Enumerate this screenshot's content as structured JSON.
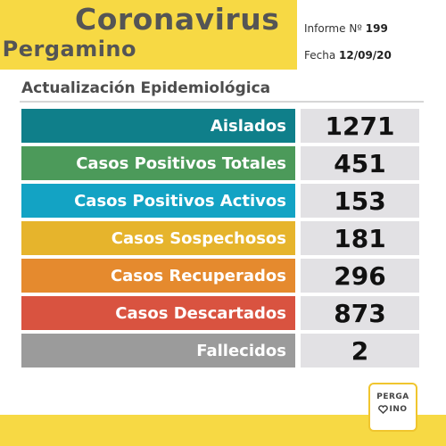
{
  "header": {
    "title": "Coronavirus",
    "subtitle": "Pergamino",
    "report_label": "Informe Nº",
    "report_number": "199",
    "date_label": "Fecha",
    "date_value": "12/09/20"
  },
  "section_title": "Actualización Epidemiológica",
  "stats": [
    {
      "label": "Aislados",
      "value": "1271",
      "color": "#0f7f8a"
    },
    {
      "label": "Casos Positivos Totales",
      "value": "451",
      "color": "#4c9a5a"
    },
    {
      "label": "Casos Positivos Activos",
      "value": "153",
      "color": "#13a3c4"
    },
    {
      "label": "Casos Sospechosos",
      "value": "181",
      "color": "#e6b42c"
    },
    {
      "label": "Casos Recuperados",
      "value": "296",
      "color": "#e58a2e"
    },
    {
      "label": "Casos Descartados",
      "value": "873",
      "color": "#d95340"
    },
    {
      "label": "Fallecidos",
      "value": "2",
      "color": "#9b9b9b"
    }
  ],
  "logo": {
    "line1": "PERGA",
    "line2": "INO",
    "heart_color": "#444444"
  },
  "colors": {
    "brand_yellow": "#f7d944",
    "value_background": "#e2e1e4"
  }
}
